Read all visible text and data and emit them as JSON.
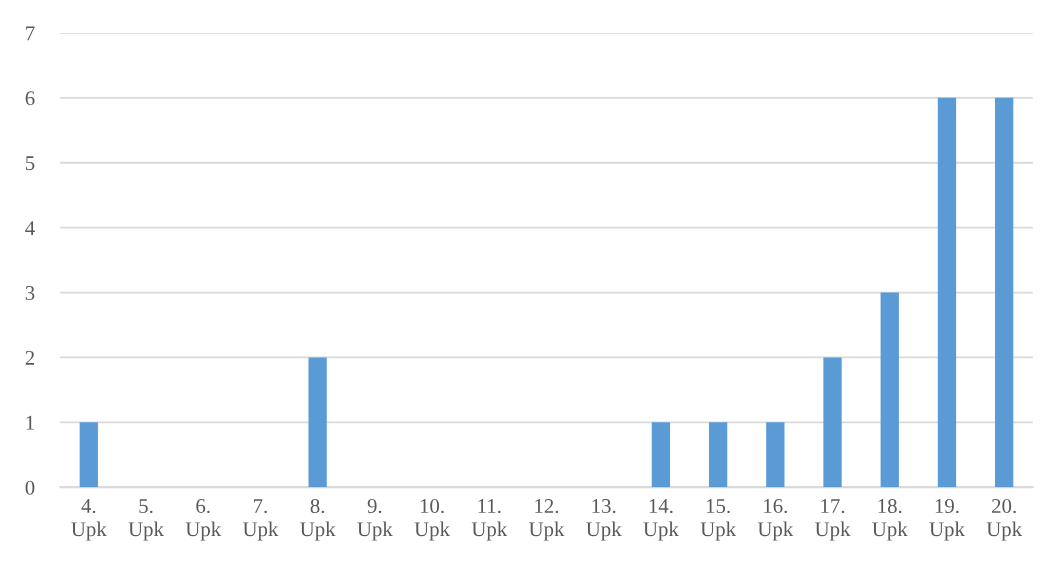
{
  "chart_data": {
    "type": "bar",
    "categories": [
      "4.\nUpk",
      "5.\nUpk",
      "6.\nUpk",
      "7.\nUpk",
      "8.\nUpk",
      "9.\nUpk",
      "10.\nUpk",
      "11.\nUpk",
      "12.\nUpk",
      "13.\nUpk",
      "14.\nUpk",
      "15.\nUpk",
      "16.\nUpk",
      "17.\nUpk",
      "18.\nUpk",
      "19.\nUpk",
      "20.\nUpk"
    ],
    "values": [
      1,
      0,
      0,
      0,
      2,
      0,
      0,
      0,
      0,
      0,
      1,
      1,
      1,
      2,
      3,
      6,
      6
    ],
    "color": "#5b9bd5",
    "ylim": [
      0,
      7
    ],
    "yticks": [
      0,
      1,
      2,
      3,
      4,
      5,
      6,
      7
    ],
    "grid": "y",
    "legend": false
  }
}
